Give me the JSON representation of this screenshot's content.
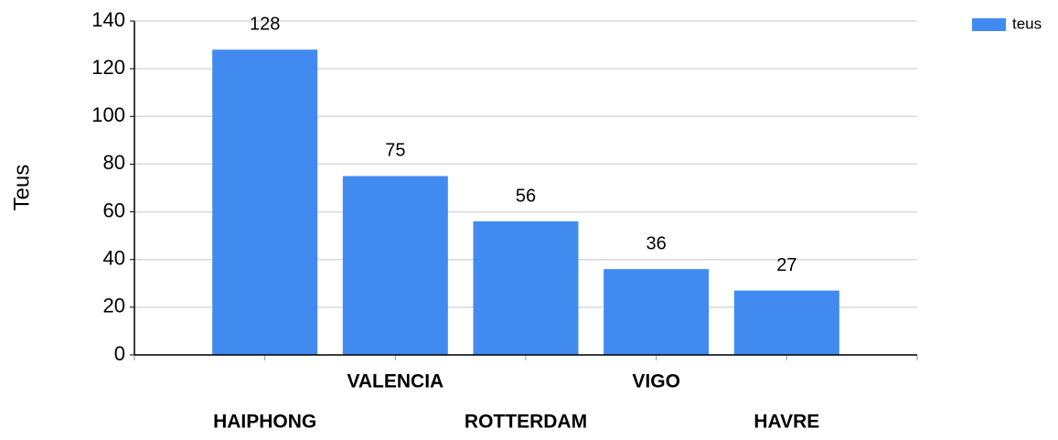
{
  "chart_data": {
    "type": "bar",
    "y_label": "Teus",
    "categories": [
      "HAIPHONG",
      "VALENCIA",
      "ROTTERDAM",
      "VIGO",
      "HAVRE"
    ],
    "series": [
      {
        "name": "teus",
        "color": "#418bf0",
        "values": [
          128,
          75,
          56,
          36,
          27
        ]
      }
    ],
    "ylim": [
      0,
      140
    ],
    "yticks": [
      0,
      20,
      40,
      60,
      80,
      100,
      120,
      140
    ],
    "grid": true,
    "legend": "top-right"
  }
}
